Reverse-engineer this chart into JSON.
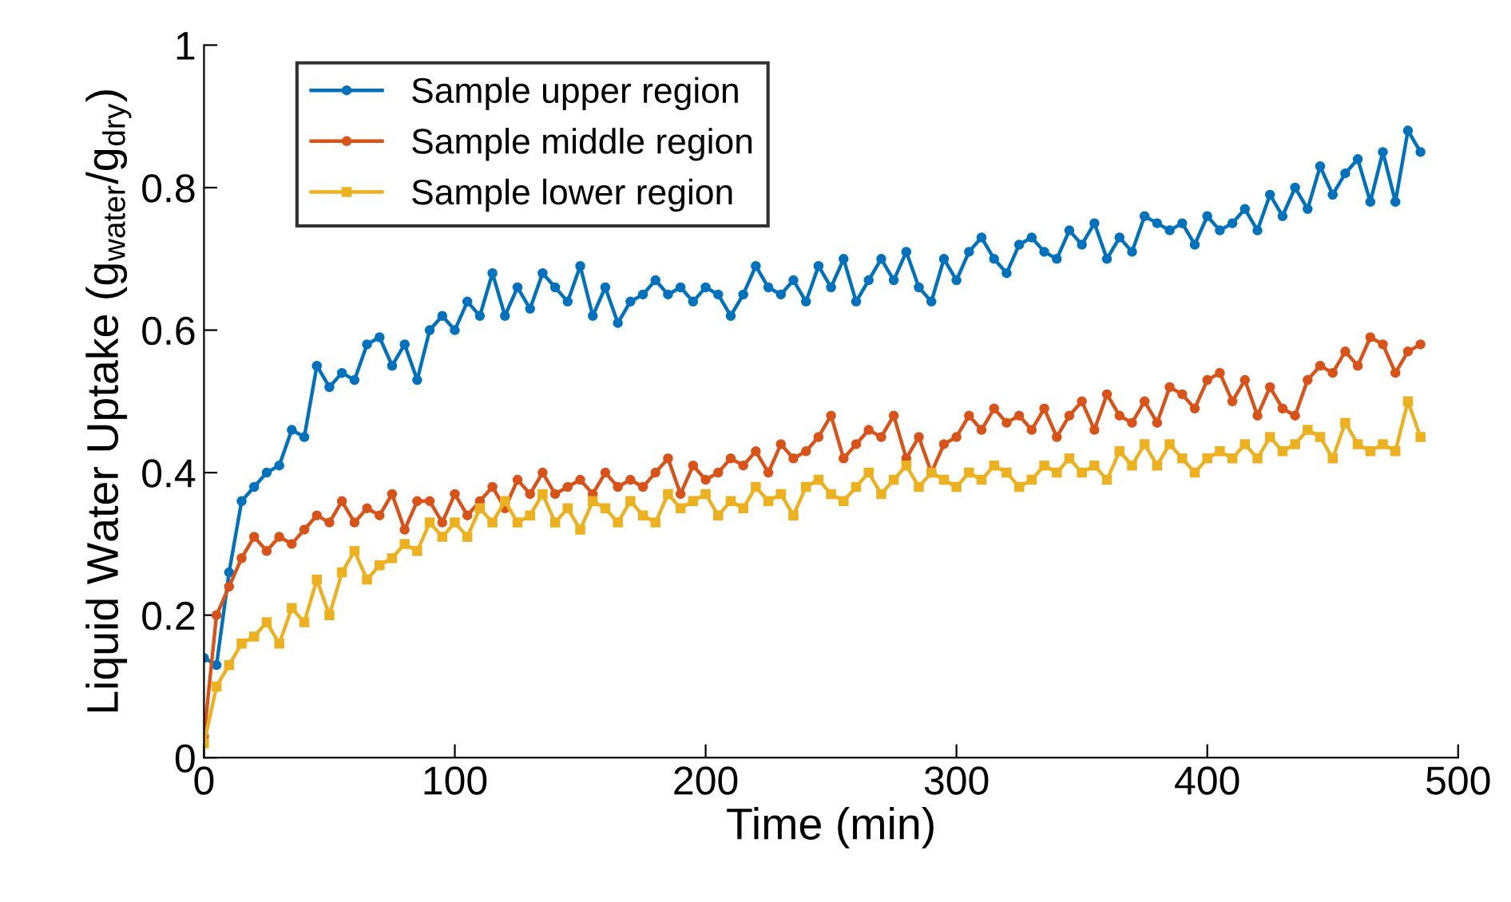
{
  "chart_data": {
    "type": "line",
    "xlabel": "Time (min)",
    "ylabel": "Liquid Water Uptake (g$_{water}$/g$_{dry}$)",
    "x": [
      0,
      5,
      10,
      15,
      20,
      25,
      30,
      35,
      40,
      45,
      50,
      55,
      60,
      65,
      70,
      75,
      80,
      85,
      90,
      95,
      100,
      105,
      110,
      115,
      120,
      125,
      130,
      135,
      140,
      145,
      150,
      155,
      160,
      165,
      170,
      175,
      180,
      185,
      190,
      195,
      200,
      205,
      210,
      215,
      220,
      225,
      230,
      235,
      240,
      245,
      250,
      255,
      260,
      265,
      270,
      275,
      280,
      285,
      290,
      295,
      300,
      305,
      310,
      315,
      320,
      325,
      330,
      335,
      340,
      345,
      350,
      355,
      360,
      365,
      370,
      375,
      380,
      385,
      390,
      395,
      400,
      405,
      410,
      415,
      420,
      425,
      430,
      435,
      440,
      445,
      450,
      455,
      460,
      465,
      470,
      475,
      480,
      485
    ],
    "series": [
      {
        "name": "Sample upper region",
        "color": "#0072bd",
        "marker": "circle",
        "values": [
          0.14,
          0.13,
          0.26,
          0.36,
          0.38,
          0.4,
          0.41,
          0.46,
          0.45,
          0.55,
          0.52,
          0.54,
          0.53,
          0.58,
          0.59,
          0.55,
          0.58,
          0.53,
          0.6,
          0.62,
          0.6,
          0.64,
          0.62,
          0.68,
          0.62,
          0.66,
          0.63,
          0.68,
          0.66,
          0.64,
          0.69,
          0.62,
          0.66,
          0.61,
          0.64,
          0.65,
          0.67,
          0.65,
          0.66,
          0.64,
          0.66,
          0.65,
          0.62,
          0.65,
          0.69,
          0.66,
          0.65,
          0.67,
          0.64,
          0.69,
          0.66,
          0.7,
          0.64,
          0.67,
          0.7,
          0.67,
          0.71,
          0.66,
          0.64,
          0.7,
          0.67,
          0.71,
          0.73,
          0.7,
          0.68,
          0.72,
          0.73,
          0.71,
          0.7,
          0.74,
          0.72,
          0.75,
          0.7,
          0.73,
          0.71,
          0.76,
          0.75,
          0.74,
          0.75,
          0.72,
          0.76,
          0.74,
          0.75,
          0.77,
          0.74,
          0.79,
          0.76,
          0.8,
          0.77,
          0.83,
          0.79,
          0.82,
          0.84,
          0.78,
          0.85,
          0.78,
          0.88,
          0.85
        ]
      },
      {
        "name": "Sample middle region",
        "color": "#d95319",
        "marker": "circle",
        "values": [
          0.03,
          0.2,
          0.24,
          0.28,
          0.31,
          0.29,
          0.31,
          0.3,
          0.32,
          0.34,
          0.33,
          0.36,
          0.33,
          0.35,
          0.34,
          0.37,
          0.32,
          0.36,
          0.36,
          0.33,
          0.37,
          0.34,
          0.36,
          0.38,
          0.35,
          0.39,
          0.37,
          0.4,
          0.37,
          0.38,
          0.39,
          0.37,
          0.4,
          0.38,
          0.39,
          0.38,
          0.4,
          0.42,
          0.37,
          0.41,
          0.39,
          0.4,
          0.42,
          0.41,
          0.43,
          0.4,
          0.44,
          0.42,
          0.43,
          0.45,
          0.48,
          0.42,
          0.44,
          0.46,
          0.45,
          0.48,
          0.42,
          0.45,
          0.4,
          0.44,
          0.45,
          0.48,
          0.46,
          0.49,
          0.47,
          0.48,
          0.46,
          0.49,
          0.45,
          0.48,
          0.5,
          0.46,
          0.51,
          0.48,
          0.47,
          0.5,
          0.47,
          0.52,
          0.51,
          0.49,
          0.53,
          0.54,
          0.5,
          0.53,
          0.48,
          0.52,
          0.49,
          0.48,
          0.53,
          0.55,
          0.54,
          0.57,
          0.55,
          0.59,
          0.58,
          0.54,
          0.57,
          0.58
        ]
      },
      {
        "name": "Sample lower region",
        "color": "#edb120",
        "marker": "square",
        "values": [
          0.02,
          0.1,
          0.13,
          0.16,
          0.17,
          0.19,
          0.16,
          0.21,
          0.19,
          0.25,
          0.2,
          0.26,
          0.29,
          0.25,
          0.27,
          0.28,
          0.3,
          0.29,
          0.33,
          0.31,
          0.33,
          0.31,
          0.35,
          0.33,
          0.36,
          0.33,
          0.34,
          0.37,
          0.33,
          0.35,
          0.32,
          0.36,
          0.35,
          0.33,
          0.36,
          0.34,
          0.33,
          0.37,
          0.35,
          0.36,
          0.37,
          0.34,
          0.36,
          0.35,
          0.38,
          0.36,
          0.37,
          0.34,
          0.38,
          0.39,
          0.37,
          0.36,
          0.38,
          0.4,
          0.37,
          0.39,
          0.41,
          0.38,
          0.4,
          0.39,
          0.38,
          0.4,
          0.39,
          0.41,
          0.4,
          0.38,
          0.39,
          0.41,
          0.4,
          0.42,
          0.4,
          0.41,
          0.39,
          0.43,
          0.41,
          0.44,
          0.41,
          0.44,
          0.42,
          0.4,
          0.42,
          0.43,
          0.42,
          0.44,
          0.42,
          0.45,
          0.43,
          0.44,
          0.46,
          0.45,
          0.42,
          0.47,
          0.44,
          0.43,
          0.44,
          0.43,
          0.5,
          0.45
        ]
      }
    ],
    "xlim": [
      0,
      500
    ],
    "xticks": [
      0,
      100,
      200,
      300,
      400,
      500
    ],
    "ylim": [
      0,
      1
    ],
    "yticks": [
      0,
      0.2,
      0.4,
      0.6,
      0.8,
      1
    ],
    "legend": "top left",
    "grid": false
  }
}
